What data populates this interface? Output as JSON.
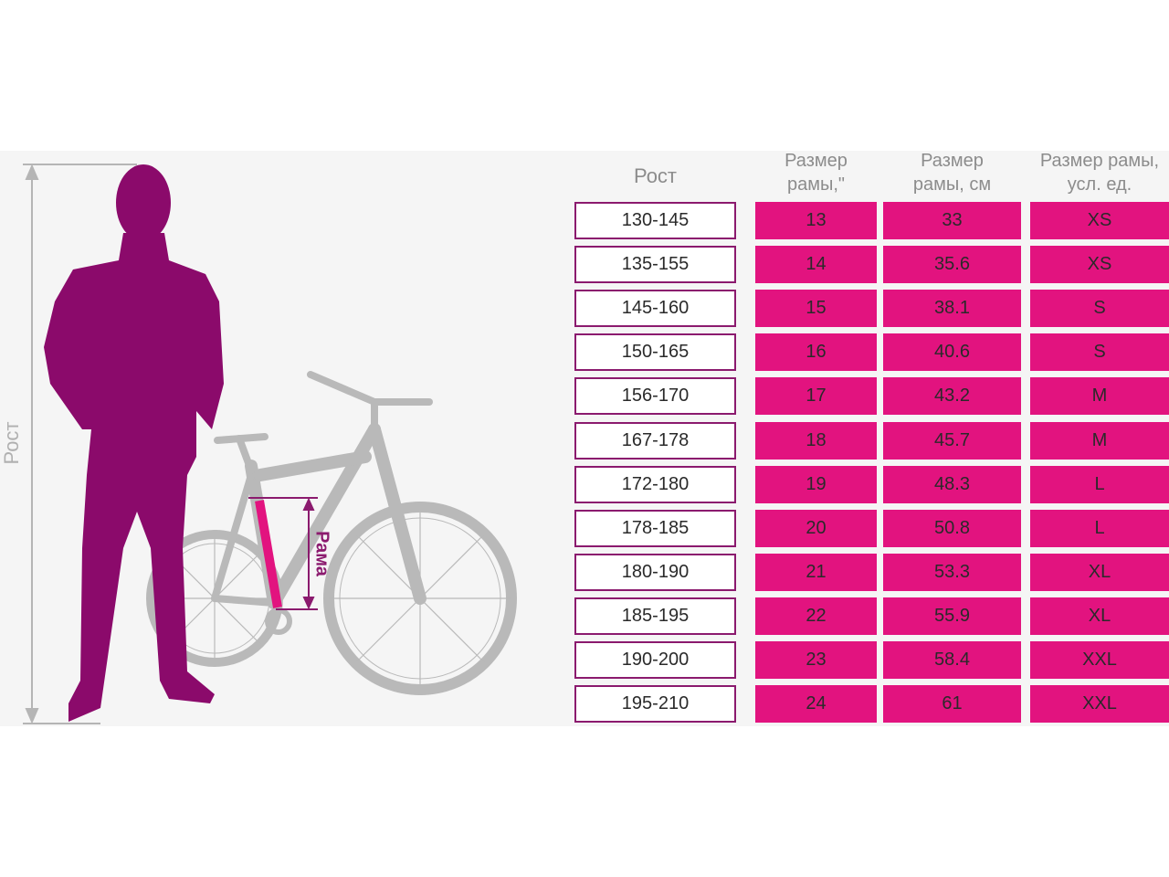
{
  "figure": {
    "height_label": "Рост",
    "frame_label": "Рама"
  },
  "table": {
    "headers": [
      "Рост",
      "Размер рамы,\"",
      "Размер рамы, см",
      "Размер рамы, усл. ед."
    ],
    "rows": [
      [
        "130-145",
        13,
        33,
        "XS"
      ],
      [
        "135-155",
        14,
        35.6,
        "XS"
      ],
      [
        "145-160",
        15,
        38.1,
        "S"
      ],
      [
        "150-165",
        16,
        40.6,
        "S"
      ],
      [
        "156-170",
        17,
        43.2,
        "M"
      ],
      [
        "167-178",
        18,
        45.7,
        "M"
      ],
      [
        "172-180",
        19,
        48.3,
        "L"
      ],
      [
        "178-185",
        20,
        50.8,
        "L"
      ],
      [
        "180-190",
        21,
        53.3,
        "XL"
      ],
      [
        "185-195",
        22,
        55.9,
        "XL"
      ],
      [
        "190-200",
        23,
        58.4,
        "XXL"
      ],
      [
        "195-210",
        24,
        61,
        "XXL"
      ]
    ]
  }
}
